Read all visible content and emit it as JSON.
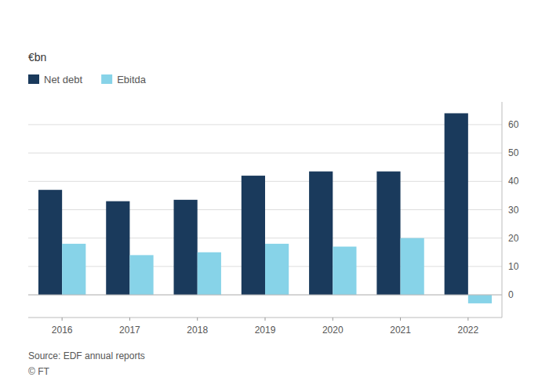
{
  "chart_data": {
    "type": "bar",
    "y_label": "€bn",
    "categories": [
      "2016",
      "2017",
      "2018",
      "2019",
      "2020",
      "2021",
      "2022"
    ],
    "series": [
      {
        "name": "Net debt",
        "color": "#1a3a5c",
        "values": [
          37.0,
          33.0,
          33.5,
          42.0,
          43.5,
          43.5,
          64.0
        ]
      },
      {
        "name": "Ebitda",
        "color": "#87d3e8",
        "values": [
          18.0,
          14.0,
          15.0,
          18.0,
          17.0,
          20.0,
          -3.0
        ]
      }
    ],
    "ylim": [
      -8,
      68
    ],
    "yticks": [
      0,
      10,
      20,
      30,
      40,
      50,
      60
    ],
    "grid": true,
    "legend": "upper left",
    "annotations": [
      "Source: EDF annual reports",
      "© FT"
    ]
  }
}
